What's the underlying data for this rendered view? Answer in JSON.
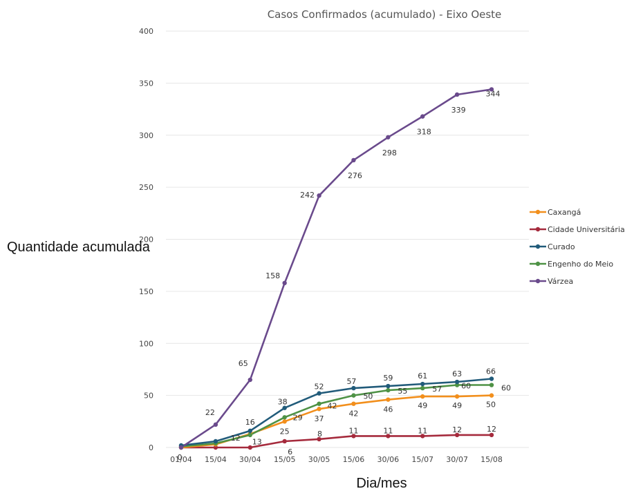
{
  "chart_data": {
    "type": "line",
    "title": "Casos Confirmados (acumulado) - Eixo Oeste",
    "xlabel": "Dia/mes",
    "ylabel": "Quantidade  acumulada",
    "ylim": [
      0,
      400
    ],
    "y_ticks": [
      0,
      50,
      100,
      150,
      200,
      250,
      300,
      350,
      400
    ],
    "grid": true,
    "legend_position": "right",
    "categories": [
      "01/04",
      "15/04",
      "30/04",
      "15/05",
      "30/05",
      "15/06",
      "30/06",
      "15/07",
      "30/07",
      "15/08"
    ],
    "series": [
      {
        "name": "Caxangá",
        "color": "#f28f1c",
        "values": [
          0,
          3,
          13,
          25,
          37,
          42,
          46,
          49,
          49,
          50
        ]
      },
      {
        "name": "Cidade Universitária",
        "color": "#a52a3c",
        "values": [
          0,
          0,
          0,
          6,
          8,
          11,
          11,
          11,
          12,
          12
        ]
      },
      {
        "name": "Curado",
        "color": "#215b7a",
        "values": [
          2,
          6,
          16,
          38,
          52,
          57,
          59,
          61,
          63,
          66
        ]
      },
      {
        "name": "Engenho do Meio",
        "color": "#4e9245",
        "values": [
          1,
          4,
          12,
          29,
          42,
          50,
          55,
          57,
          60,
          60
        ]
      },
      {
        "name": "Várzea",
        "color": "#6a4a8c",
        "values": [
          0,
          22,
          65,
          158,
          242,
          276,
          298,
          318,
          339,
          344
        ]
      }
    ],
    "data_labels": [
      {
        "series": "Várzea",
        "labels": [
          "",
          "22",
          "65",
          "158",
          "242",
          "276",
          "298",
          "318",
          "339",
          "344"
        ]
      },
      {
        "series": "Curado",
        "labels": [
          "",
          "",
          "16",
          "38",
          "52",
          "57",
          "59",
          "61",
          "63",
          "66"
        ]
      },
      {
        "series": "Engenho do Meio",
        "labels": [
          "",
          "",
          "12",
          "29",
          "42",
          "50",
          "55",
          "57",
          "60",
          "60"
        ]
      },
      {
        "series": "Caxangá",
        "labels": [
          "0",
          "",
          "13",
          "25",
          "37",
          "42",
          "46",
          "49",
          "49",
          "50"
        ]
      },
      {
        "series": "Cidade Universitária",
        "labels": [
          "",
          "",
          "",
          "6",
          "8",
          "11",
          "11",
          "11",
          "12",
          "12"
        ]
      }
    ]
  }
}
